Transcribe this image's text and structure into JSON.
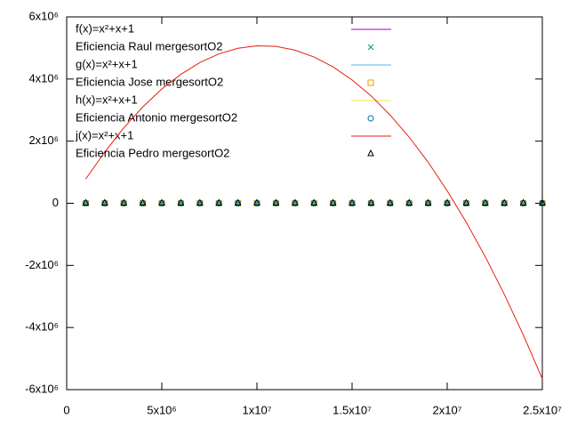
{
  "chart_data": {
    "type": "line",
    "x": [
      1000000,
      2000000,
      3000000,
      4000000,
      5000000,
      6000000,
      7000000,
      8000000,
      9000000,
      10000000,
      11000000,
      12000000,
      13000000,
      14000000,
      15000000,
      16000000,
      17000000,
      18000000,
      19000000,
      20000000,
      21000000,
      22000000,
      23000000,
      24000000,
      25000000
    ],
    "series": [
      {
        "name": "f(x)=x²+x+1",
        "color": "#9400d3",
        "style": "line"
      },
      {
        "name": "Eficiencia Raul mergesortO2",
        "color": "#009e73",
        "style": "cross",
        "values": [
          0,
          0,
          0,
          0,
          0,
          0,
          0,
          0,
          0,
          0,
          0,
          0,
          0,
          0,
          0,
          0,
          0,
          0,
          0,
          0,
          0,
          0,
          0,
          0,
          0
        ]
      },
      {
        "name": "g(x)=x²+x+1",
        "color": "#56b4e9",
        "style": "line"
      },
      {
        "name": "Eficiencia Jose mergesortO2",
        "color": "#e69f00",
        "style": "square",
        "values": [
          0,
          0,
          0,
          0,
          0,
          0,
          0,
          0,
          0,
          0,
          0,
          0,
          0,
          0,
          0,
          0,
          0,
          0,
          0,
          0,
          0,
          0,
          0,
          0,
          0
        ]
      },
      {
        "name": "h(x)=x²+x+1",
        "color": "#f0e442",
        "style": "line"
      },
      {
        "name": "Eficiencia Antonio mergesortO2",
        "color": "#0072b2",
        "style": "circle",
        "values": [
          0,
          0,
          0,
          0,
          0,
          0,
          0,
          0,
          0,
          0,
          0,
          0,
          0,
          0,
          0,
          0,
          0,
          0,
          0,
          0,
          0,
          0,
          0,
          0,
          0
        ]
      },
      {
        "name": "j(x)=x²+x+1",
        "color": "#e51e10",
        "style": "line",
        "values": [
          780000,
          1650000,
          2430000,
          3100000,
          3680000,
          4150000,
          4530000,
          4810000,
          4990000,
          5070000,
          5050000,
          4930000,
          4710000,
          4390000,
          3970000,
          3460000,
          2840000,
          2130000,
          1320000,
          400000,
          -610000,
          -1720000,
          -2930000,
          -4240000,
          -5650000
        ]
      },
      {
        "name": "Eficiencia Pedro mergesortO2",
        "color": "#000000",
        "style": "triangle",
        "values": [
          0,
          0,
          0,
          0,
          0,
          0,
          0,
          0,
          0,
          0,
          0,
          0,
          0,
          0,
          0,
          0,
          0,
          0,
          0,
          0,
          0,
          0,
          0,
          0,
          0
        ]
      }
    ],
    "xlim": [
      0,
      25000000
    ],
    "ylim": [
      -6000000,
      6000000
    ],
    "xticks": [
      0,
      {
        "value": 5000000,
        "label": "5x10⁶"
      },
      {
        "value": 10000000,
        "label": "1x10⁷"
      },
      {
        "value": 15000000,
        "label": "1.5x10⁷"
      },
      {
        "value": 20000000,
        "label": "2x10⁷"
      },
      {
        "value": 25000000,
        "label": "2.5x10⁷"
      }
    ],
    "yticks": [
      {
        "value": -6000000,
        "label": "-6x10⁶"
      },
      {
        "value": -4000000,
        "label": "-4x10⁶"
      },
      {
        "value": -2000000,
        "label": "-2x10⁶"
      },
      0,
      {
        "value": 2000000,
        "label": "2x10⁶"
      },
      {
        "value": 4000000,
        "label": "4x10⁶"
      },
      {
        "value": 6000000,
        "label": "6x10⁶"
      }
    ],
    "legend": "top-left"
  }
}
